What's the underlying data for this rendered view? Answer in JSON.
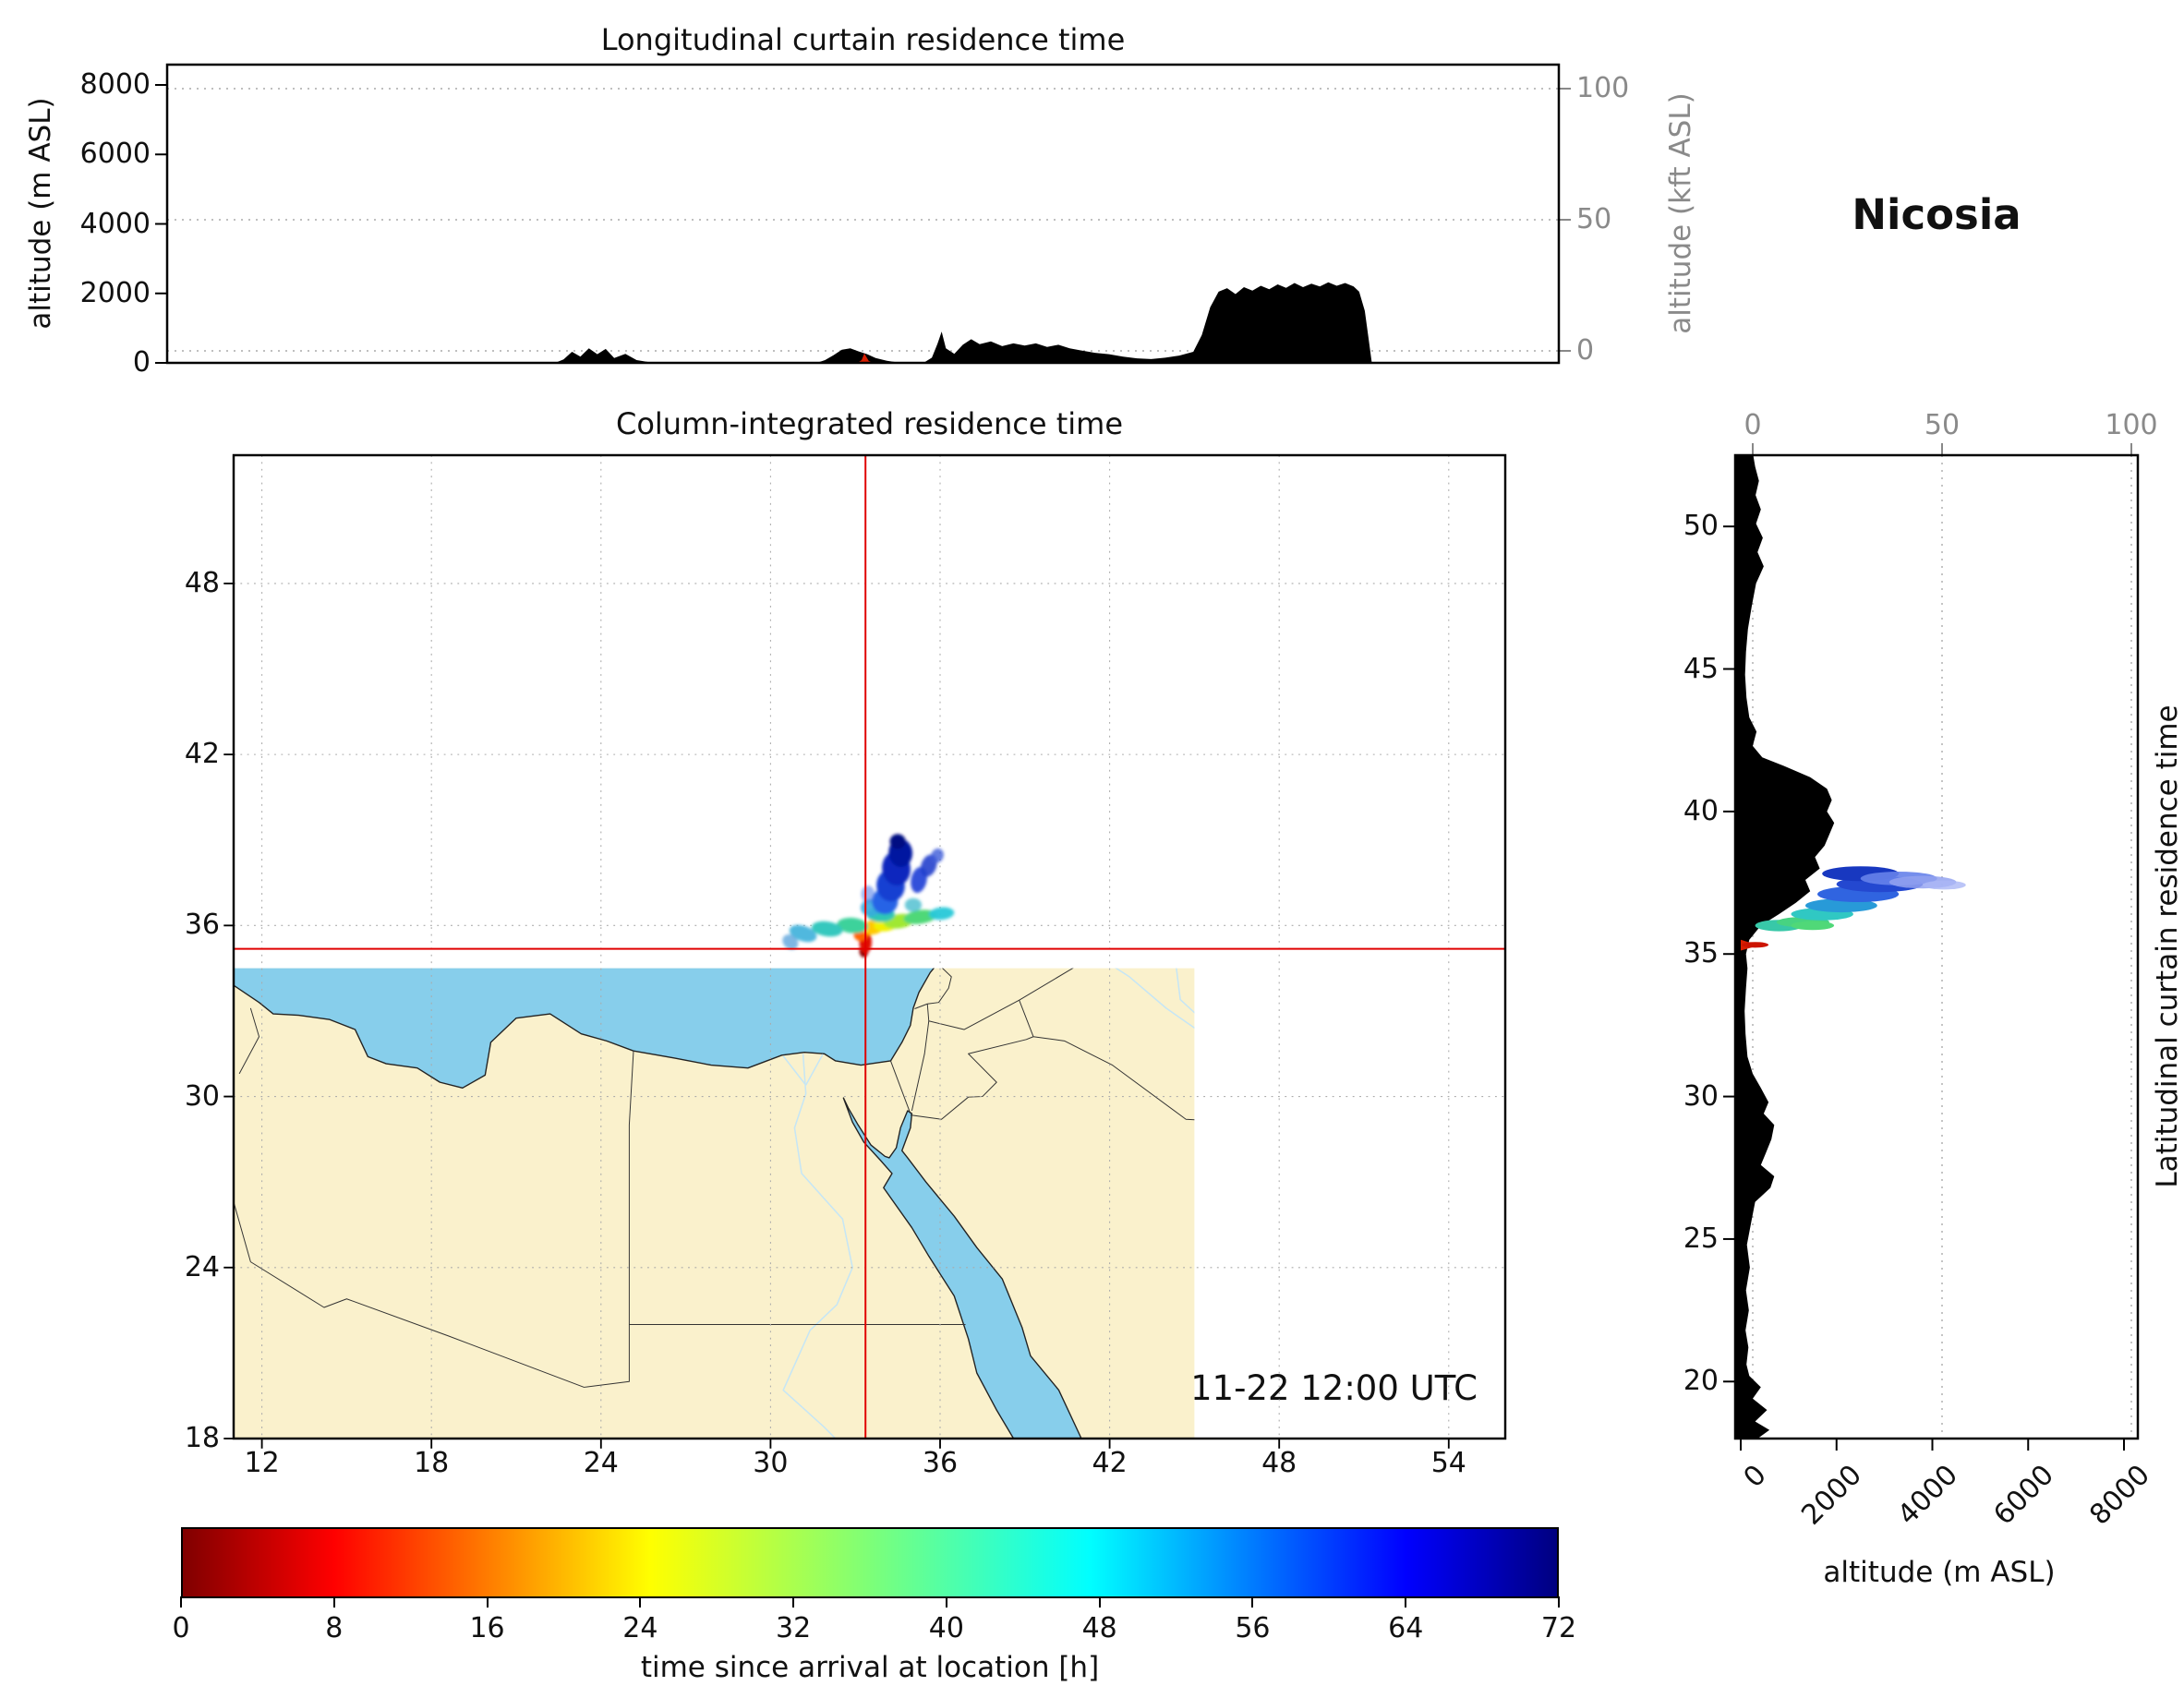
{
  "colors": {
    "land": "#faf1cc",
    "sea": "#87ceeb",
    "terrain": "#000000",
    "source": "#d81e00",
    "crosshair": "#e00000",
    "gray_axis": "#8a8a8a"
  },
  "station": {
    "name": "Nicosia"
  },
  "panels": {
    "top": {
      "title": "Longitudinal curtain residence time",
      "ylabel_left": "altitude (m ASL)",
      "ylabel_right": "altitude (kft ASL)"
    },
    "map": {
      "title": "Column-integrated residence time",
      "timestamp": "2019-11-22 12:00 UTC"
    },
    "right": {
      "title": "Latitudinal curtain residence time",
      "xlabel": "altitude (m ASL)"
    }
  },
  "colorbar": {
    "label": "time since arrival at location [h]"
  },
  "chart_data": {
    "type": "map+curtain",
    "title": "Nicosia",
    "timestamp": "2019-11-22 12:00 UTC",
    "colorbar": {
      "label": "time since arrival at location [h]",
      "min": 0,
      "max": 72,
      "ticks": [
        0,
        8,
        16,
        24,
        32,
        40,
        48,
        56,
        64,
        72
      ],
      "colormap": "jet_r",
      "colormap_stops": [
        [
          0,
          "#800000"
        ],
        [
          0.11,
          "#ff0000"
        ],
        [
          0.34,
          "#ffff00"
        ],
        [
          0.5,
          "#7dff78"
        ],
        [
          0.66,
          "#00ffff"
        ],
        [
          0.89,
          "#0000ff"
        ],
        [
          1,
          "#000080"
        ]
      ]
    },
    "map": {
      "lon_range": [
        11,
        56
      ],
      "lat_range": [
        18,
        52.5
      ],
      "lon_ticks": [
        12,
        18,
        24,
        30,
        36,
        42,
        48,
        54
      ],
      "lat_ticks": [
        18,
        24,
        30,
        36,
        42,
        48
      ],
      "source": {
        "name": "Nicosia",
        "lon": 33.36,
        "lat": 35.18
      },
      "plume": [
        [
          33.3,
          35.1,
          0.16,
          0.22,
          0,
          "#8c0000",
          1
        ],
        [
          33.36,
          35.42,
          0.22,
          0.4,
          0,
          "#e01000",
          1
        ],
        [
          33.2,
          35.7,
          0.26,
          0.24,
          -20,
          "#ff6400",
          1
        ],
        [
          33.65,
          35.95,
          0.4,
          0.26,
          -15,
          "#ffc800",
          1
        ],
        [
          34.1,
          36.05,
          0.45,
          0.25,
          -10,
          "#f0f000",
          1
        ],
        [
          34.55,
          36.15,
          0.55,
          0.25,
          -8,
          "#a0e832",
          1
        ],
        [
          35.3,
          36.3,
          0.6,
          0.24,
          -8,
          "#50d878",
          1
        ],
        [
          36.05,
          36.42,
          0.45,
          0.22,
          -5,
          "#28c8d8",
          0.95
        ],
        [
          32.9,
          36.0,
          0.55,
          0.27,
          5,
          "#3cd29b",
          1
        ],
        [
          32.0,
          35.88,
          0.55,
          0.26,
          8,
          "#35c8be",
          1
        ],
        [
          31.15,
          35.72,
          0.5,
          0.27,
          18,
          "#46b4dc",
          0.95
        ],
        [
          30.7,
          35.42,
          0.3,
          0.24,
          40,
          "#69aade",
          0.85
        ],
        [
          33.9,
          36.38,
          0.5,
          0.26,
          0,
          "#2fc8b4",
          1
        ],
        [
          33.55,
          36.62,
          0.36,
          0.3,
          0,
          "#38aade",
          0.9
        ],
        [
          34.05,
          36.85,
          0.46,
          0.46,
          0,
          "#2864e6",
          1
        ],
        [
          34.25,
          37.4,
          0.5,
          0.56,
          -8,
          "#1740d2",
          1
        ],
        [
          34.45,
          38.0,
          0.5,
          0.6,
          -8,
          "#0a28be",
          1
        ],
        [
          34.6,
          38.55,
          0.42,
          0.5,
          -5,
          "#0418a0",
          1
        ],
        [
          34.5,
          38.95,
          0.28,
          0.26,
          0,
          "#021082",
          1
        ],
        [
          35.25,
          37.6,
          0.28,
          0.46,
          12,
          "#2846d8",
          0.95
        ],
        [
          35.6,
          38.1,
          0.27,
          0.4,
          20,
          "#2340cc",
          0.9
        ],
        [
          35.9,
          38.45,
          0.22,
          0.26,
          25,
          "#3c5ad8",
          0.8
        ],
        [
          33.45,
          37.1,
          0.24,
          0.3,
          0,
          "#4878e8",
          0.55
        ],
        [
          35.05,
          36.72,
          0.3,
          0.24,
          0,
          "#2fb4c8",
          0.7
        ]
      ]
    },
    "lon_curtain": {
      "lon_range": [
        8.5,
        58
      ],
      "alt_range_m": [
        0,
        8600
      ],
      "alt_ticks_m": [
        0,
        2000,
        4000,
        6000,
        8000
      ],
      "alt_ticks_kft": [
        0,
        50,
        100
      ],
      "terrain": [
        [
          8.5,
          0
        ],
        [
          22.3,
          0
        ],
        [
          22.6,
          100
        ],
        [
          22.9,
          320
        ],
        [
          23.2,
          180
        ],
        [
          23.5,
          420
        ],
        [
          23.8,
          250
        ],
        [
          24.1,
          400
        ],
        [
          24.4,
          140
        ],
        [
          24.8,
          260
        ],
        [
          25.2,
          80
        ],
        [
          25.8,
          0
        ],
        [
          31.6,
          0
        ],
        [
          31.9,
          80
        ],
        [
          32.2,
          220
        ],
        [
          32.5,
          380
        ],
        [
          32.8,
          420
        ],
        [
          33.1,
          330
        ],
        [
          33.4,
          250
        ],
        [
          33.7,
          140
        ],
        [
          34.1,
          60
        ],
        [
          34.6,
          0
        ],
        [
          35.4,
          0
        ],
        [
          35.7,
          150
        ],
        [
          35.9,
          550
        ],
        [
          36.05,
          900
        ],
        [
          36.2,
          420
        ],
        [
          36.5,
          260
        ],
        [
          36.8,
          520
        ],
        [
          37.1,
          680
        ],
        [
          37.4,
          540
        ],
        [
          37.8,
          620
        ],
        [
          38.2,
          480
        ],
        [
          38.6,
          560
        ],
        [
          39.0,
          500
        ],
        [
          39.4,
          560
        ],
        [
          39.8,
          460
        ],
        [
          40.2,
          520
        ],
        [
          40.6,
          420
        ],
        [
          41.0,
          360
        ],
        [
          41.5,
          290
        ],
        [
          42.0,
          250
        ],
        [
          42.5,
          180
        ],
        [
          43.0,
          130
        ],
        [
          43.5,
          110
        ],
        [
          44.0,
          150
        ],
        [
          44.5,
          210
        ],
        [
          45.0,
          320
        ],
        [
          45.3,
          800
        ],
        [
          45.6,
          1600
        ],
        [
          45.9,
          2050
        ],
        [
          46.2,
          2150
        ],
        [
          46.5,
          1980
        ],
        [
          46.8,
          2180
        ],
        [
          47.1,
          2080
        ],
        [
          47.4,
          2220
        ],
        [
          47.7,
          2120
        ],
        [
          48.0,
          2260
        ],
        [
          48.3,
          2160
        ],
        [
          48.6,
          2300
        ],
        [
          48.9,
          2180
        ],
        [
          49.2,
          2280
        ],
        [
          49.5,
          2200
        ],
        [
          49.8,
          2320
        ],
        [
          50.1,
          2220
        ],
        [
          50.4,
          2300
        ],
        [
          50.7,
          2200
        ],
        [
          50.9,
          2050
        ],
        [
          51.1,
          1500
        ],
        [
          51.25,
          600
        ],
        [
          51.35,
          0
        ],
        [
          58,
          0
        ]
      ],
      "source_spike": [
        [
          33.05,
          0
        ],
        [
          33.2,
          80
        ],
        [
          33.3,
          270
        ],
        [
          33.45,
          60
        ],
        [
          33.6,
          0
        ]
      ]
    },
    "lat_curtain": {
      "lat_range": [
        18,
        52.5
      ],
      "alt_range_m": [
        0,
        8300
      ],
      "alt_ticks_m": [
        0,
        2000,
        4000,
        6000,
        8000
      ],
      "alt_ticks_kft": [
        0,
        50,
        100
      ],
      "lat_ticks": [
        20,
        25,
        30,
        35,
        40,
        45,
        50
      ],
      "terrain": [
        [
          18,
          350
        ],
        [
          18.3,
          600
        ],
        [
          18.6,
          300
        ],
        [
          19.0,
          550
        ],
        [
          19.4,
          250
        ],
        [
          19.8,
          420
        ],
        [
          20.2,
          180
        ],
        [
          20.6,
          120
        ],
        [
          21.2,
          160
        ],
        [
          21.8,
          100
        ],
        [
          22.5,
          170
        ],
        [
          23.2,
          110
        ],
        [
          24.0,
          190
        ],
        [
          24.8,
          130
        ],
        [
          25.6,
          220
        ],
        [
          26.3,
          300
        ],
        [
          26.8,
          620
        ],
        [
          27.2,
          700
        ],
        [
          27.6,
          420
        ],
        [
          28.0,
          520
        ],
        [
          28.5,
          640
        ],
        [
          29.0,
          700
        ],
        [
          29.4,
          480
        ],
        [
          29.8,
          580
        ],
        [
          30.3,
          420
        ],
        [
          30.8,
          250
        ],
        [
          31.4,
          140
        ],
        [
          32.2,
          100
        ],
        [
          33.0,
          80
        ],
        [
          33.8,
          110
        ],
        [
          34.5,
          140
        ],
        [
          35.0,
          110
        ],
        [
          35.5,
          180
        ],
        [
          36.0,
          420
        ],
        [
          36.4,
          800
        ],
        [
          36.8,
          1150
        ],
        [
          37.2,
          1450
        ],
        [
          37.6,
          1350
        ],
        [
          38.0,
          1650
        ],
        [
          38.4,
          1550
        ],
        [
          38.8,
          1750
        ],
        [
          39.2,
          1850
        ],
        [
          39.6,
          1950
        ],
        [
          40.0,
          1800
        ],
        [
          40.4,
          1900
        ],
        [
          40.8,
          1800
        ],
        [
          41.2,
          1450
        ],
        [
          41.6,
          900
        ],
        [
          41.9,
          450
        ],
        [
          42.3,
          250
        ],
        [
          42.8,
          330
        ],
        [
          43.3,
          180
        ],
        [
          44.0,
          120
        ],
        [
          44.8,
          90
        ],
        [
          45.6,
          110
        ],
        [
          46.4,
          150
        ],
        [
          47.2,
          230
        ],
        [
          48.0,
          320
        ],
        [
          48.6,
          480
        ],
        [
          49.1,
          350
        ],
        [
          49.6,
          460
        ],
        [
          50.1,
          320
        ],
        [
          50.6,
          420
        ],
        [
          51.1,
          310
        ],
        [
          51.6,
          380
        ],
        [
          52.1,
          300
        ],
        [
          52.5,
          260
        ]
      ],
      "source_spike": [
        [
          35.12,
          0
        ],
        [
          35.3,
          380
        ],
        [
          35.5,
          0
        ]
      ],
      "plume": [
        [
          300,
          35.32,
          280,
          0.1,
          "#cc1400",
          1
        ],
        [
          800,
          36.0,
          500,
          0.2,
          "#38c8a8",
          1
        ],
        [
          1300,
          36.12,
          550,
          0.18,
          "#47d381",
          1
        ],
        [
          1500,
          36.0,
          450,
          0.16,
          "#50d878",
          1
        ],
        [
          1700,
          36.4,
          650,
          0.22,
          "#30c8c3",
          1
        ],
        [
          2100,
          36.7,
          750,
          0.24,
          "#289ad8",
          1
        ],
        [
          2450,
          37.1,
          850,
          0.28,
          "#3064e0",
          1
        ],
        [
          2900,
          37.45,
          900,
          0.28,
          "#2448d0",
          1
        ],
        [
          2500,
          37.82,
          800,
          0.26,
          "#1838c0",
          1
        ],
        [
          3300,
          37.65,
          800,
          0.24,
          "#6682ea",
          0.9
        ],
        [
          3800,
          37.52,
          700,
          0.22,
          "#93a2f0",
          0.85
        ],
        [
          4250,
          37.42,
          450,
          0.16,
          "#aab6f5",
          0.8
        ]
      ]
    }
  }
}
